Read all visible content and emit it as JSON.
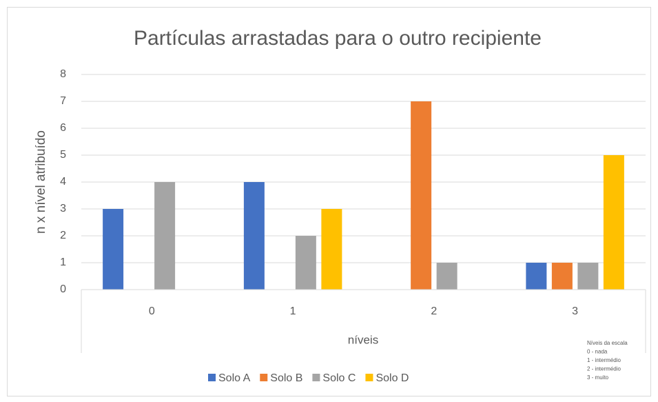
{
  "chart_data": {
    "type": "bar",
    "title": "Partículas arrastadas para o outro recipiente",
    "x_label": "níveis",
    "y_label": "n x nível atribuído",
    "categories": [
      "0",
      "1",
      "2",
      "3"
    ],
    "series": [
      {
        "name": "Solo A",
        "color": "#4472c4",
        "values": [
          3,
          4,
          0,
          1
        ]
      },
      {
        "name": "Solo B",
        "color": "#ed7d31",
        "values": [
          0,
          0,
          7,
          1
        ]
      },
      {
        "name": "Solo C",
        "color": "#a5a5a5",
        "values": [
          4,
          2,
          1,
          1
        ]
      },
      {
        "name": "Solo D",
        "color": "#ffc000",
        "values": [
          0,
          3,
          0,
          5
        ]
      }
    ],
    "ylim": [
      0,
      8
    ],
    "yticks": [
      0,
      1,
      2,
      3,
      4,
      5,
      6,
      7,
      8
    ],
    "grid": true,
    "legend": "bottom",
    "annotation": [
      "Níveis da escala",
      "0 - nada",
      "1 - intermédio",
      "2 - intermédio",
      "3 - muito"
    ]
  }
}
